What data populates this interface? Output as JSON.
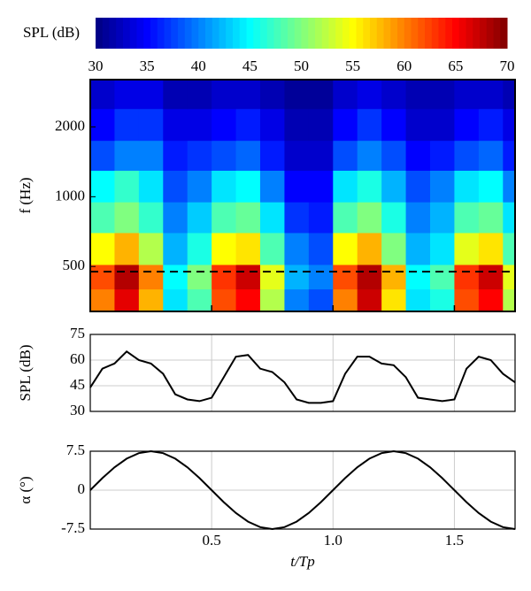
{
  "chart_data": [
    {
      "type": "heatmap",
      "ylabel": "f (Hz)",
      "log_y": true,
      "xlim": [
        0,
        1.75
      ],
      "ylim": [
        320,
        3200
      ],
      "yticks": [
        500,
        1000,
        2000
      ],
      "x_edges": [
        0,
        0.1,
        0.2,
        0.3,
        0.4,
        0.5,
        0.6,
        0.7,
        0.8,
        0.9,
        1.0,
        1.1,
        1.2,
        1.3,
        1.4,
        1.5,
        1.6,
        1.7,
        1.75
      ],
      "y_edges": [
        320,
        400,
        510,
        700,
        950,
        1300,
        1750,
        2400,
        3200
      ],
      "z": [
        [
          60,
          66,
          58,
          44,
          48,
          62,
          65,
          52,
          40,
          38,
          60,
          67,
          56,
          44,
          46,
          62,
          65,
          52
        ],
        [
          62,
          68,
          60,
          45,
          50,
          63,
          67,
          54,
          42,
          40,
          62,
          68,
          58,
          45,
          48,
          63,
          67,
          54
        ],
        [
          55,
          58,
          52,
          42,
          46,
          55,
          56,
          48,
          40,
          38,
          55,
          58,
          50,
          42,
          44,
          54,
          56,
          48
        ],
        [
          48,
          50,
          47,
          40,
          43,
          48,
          49,
          44,
          37,
          36,
          48,
          50,
          46,
          40,
          42,
          48,
          49,
          44
        ],
        [
          45,
          47,
          44,
          38,
          40,
          44,
          45,
          40,
          35,
          35,
          44,
          46,
          42,
          38,
          40,
          44,
          45,
          40
        ],
        [
          38,
          40,
          40,
          36,
          37,
          38,
          39,
          36,
          33,
          33,
          38,
          40,
          38,
          35,
          36,
          38,
          39,
          36
        ],
        [
          35,
          37,
          37,
          34,
          34,
          35,
          36,
          34,
          32,
          32,
          35,
          37,
          35,
          33,
          33,
          35,
          36,
          34
        ],
        [
          33,
          34,
          34,
          32,
          32,
          33,
          33,
          32,
          31,
          31,
          33,
          34,
          33,
          32,
          32,
          33,
          33,
          32
        ]
      ],
      "reference_line": 475,
      "colorbar": {
        "label": "SPL (dB)",
        "clim": [
          30,
          70
        ],
        "ticks": [
          30,
          35,
          40,
          45,
          50,
          55,
          60,
          65,
          70
        ]
      }
    },
    {
      "type": "line",
      "ylabel": "SPL (dB)",
      "grid": true,
      "color": "#000000",
      "xlim": [
        0,
        1.75
      ],
      "ylim": [
        30,
        75
      ],
      "yticks": [
        30,
        45,
        60,
        75
      ],
      "x": [
        0,
        0.05,
        0.1,
        0.15,
        0.2,
        0.25,
        0.3,
        0.35,
        0.4,
        0.45,
        0.5,
        0.55,
        0.6,
        0.65,
        0.7,
        0.75,
        0.8,
        0.85,
        0.9,
        0.95,
        1.0,
        1.05,
        1.1,
        1.15,
        1.2,
        1.25,
        1.3,
        1.35,
        1.4,
        1.45,
        1.5,
        1.55,
        1.6,
        1.65,
        1.7,
        1.75
      ],
      "values": [
        44,
        55,
        58,
        65,
        60,
        58,
        52,
        40,
        37,
        36,
        38,
        50,
        62,
        63,
        55,
        53,
        47,
        37,
        35,
        35,
        36,
        52,
        62,
        62,
        58,
        57,
        50,
        38,
        37,
        36,
        37,
        55,
        62,
        60,
        52,
        47
      ]
    },
    {
      "type": "line",
      "ylabel": "α (°)",
      "xlabel": "t/Tp",
      "grid": true,
      "color": "#000000",
      "xlim": [
        0,
        1.75
      ],
      "ylim": [
        -7.5,
        7.5
      ],
      "yticks": [
        -7.5,
        0,
        7.5
      ],
      "xticks": [
        0.5,
        {
          "value": 1,
          "label": "1.0"
        },
        1.5
      ],
      "x": [
        0,
        0.05,
        0.1,
        0.15,
        0.2,
        0.25,
        0.3,
        0.35,
        0.4,
        0.45,
        0.5,
        0.55,
        0.6,
        0.65,
        0.7,
        0.75,
        0.8,
        0.85,
        0.9,
        0.95,
        1.0,
        1.05,
        1.1,
        1.15,
        1.2,
        1.25,
        1.3,
        1.35,
        1.4,
        1.45,
        1.5,
        1.55,
        1.6,
        1.65,
        1.7,
        1.75
      ],
      "values": [
        0,
        2.32,
        4.41,
        6.07,
        7.13,
        7.5,
        7.13,
        6.07,
        4.41,
        2.32,
        0,
        -2.32,
        -4.41,
        -6.07,
        -7.13,
        -7.5,
        -7.13,
        -6.07,
        -4.41,
        -2.32,
        0,
        2.32,
        4.41,
        6.07,
        7.13,
        7.5,
        7.13,
        6.07,
        4.41,
        2.32,
        0,
        -2.32,
        -4.41,
        -6.07,
        -7.13,
        -7.5
      ]
    }
  ]
}
